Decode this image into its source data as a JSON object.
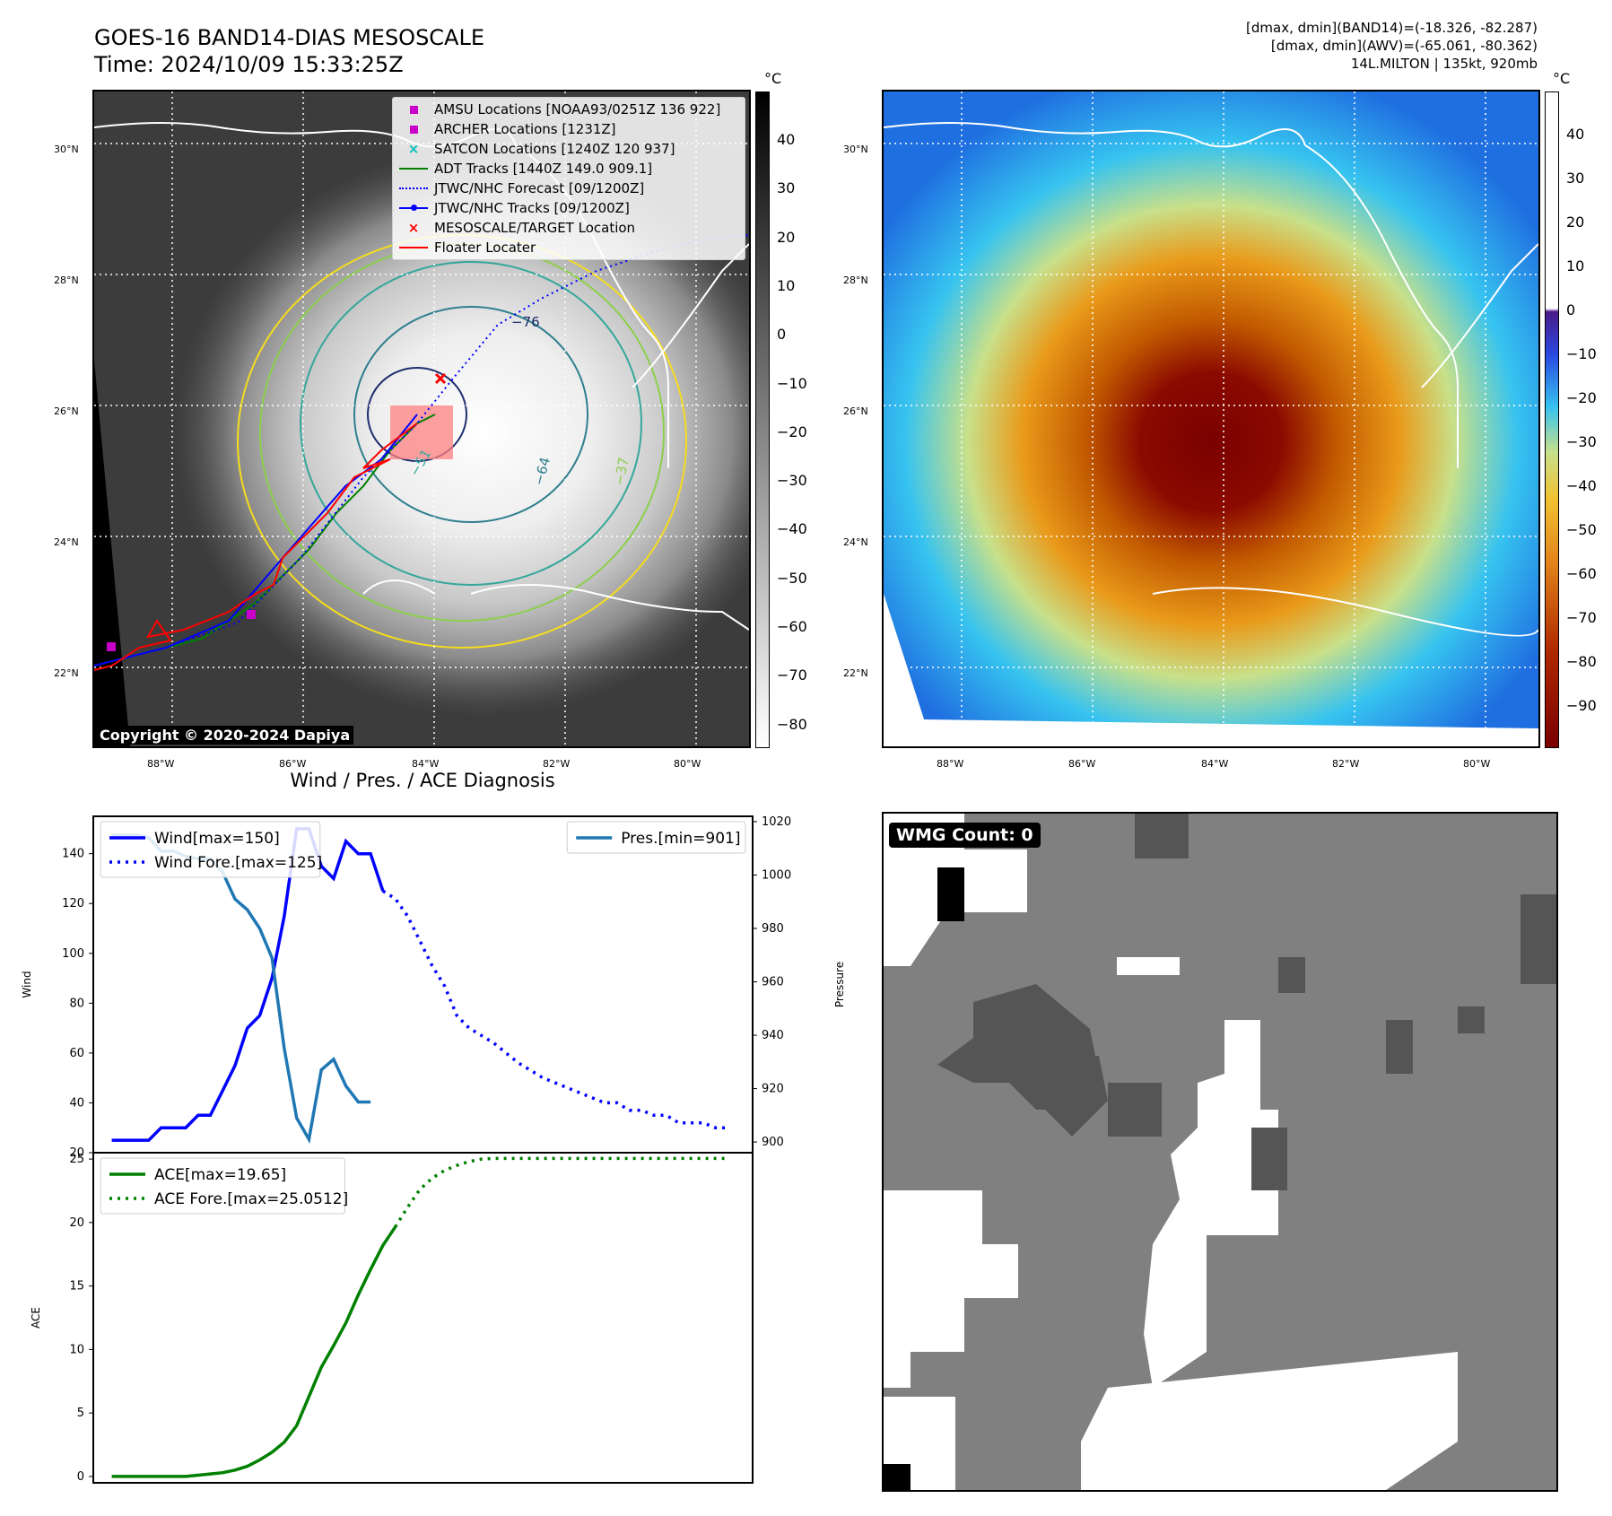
{
  "header": {
    "title": "GOES-16 BAND14-DIAS MESOSCALE",
    "time": "Time: 2024/10/09 15:33:25Z",
    "info_band14": "[dmax, dmin](BAND14)=(-18.326, -82.287)",
    "info_awv": "[dmax, dmin](AWV)=(-65.061, -80.362)",
    "info_storm": "14L.MILTON | 135kt, 920mb"
  },
  "map_axes": {
    "lat_labels": [
      "30°N",
      "28°N",
      "26°N",
      "24°N",
      "22°N"
    ],
    "lon_labels": [
      "88°W",
      "86°W",
      "84°W",
      "82°W",
      "80°W"
    ]
  },
  "ir_panel": {
    "copyright": "Copyright © 2020-2024 Dapiya",
    "colorbar_unit": "°C",
    "colorbar_ticks": [
      "40",
      "30",
      "20",
      "10",
      "0",
      "−10",
      "−20",
      "−30",
      "−40",
      "−50",
      "−60",
      "−70",
      "−80"
    ],
    "contour_labels": [
      "−76",
      "−64",
      "−51",
      "−37"
    ],
    "legend": [
      {
        "label": "AMSU Locations [NOAA93/0251Z 136 922]",
        "marker": "square",
        "color": "#c800c8"
      },
      {
        "label": "ARCHER Locations [1231Z]",
        "marker": "square",
        "color": "#c800c8"
      },
      {
        "label": "SATCON Locations [1240Z 120 937]",
        "marker": "x",
        "color": "#00c0c0"
      },
      {
        "label": "ADT Tracks [1440Z 149.0 909.1]",
        "marker": "line",
        "color": "#008000"
      },
      {
        "label": "JTWC/NHC Forecast [09/1200Z]",
        "marker": "dotted",
        "color": "#0000ff"
      },
      {
        "label": "JTWC/NHC Tracks [09/1200Z]",
        "marker": "line-dot",
        "color": "#0000ff"
      },
      {
        "label": "MESOSCALE/TARGET Location",
        "marker": "x",
        "color": "#ff0000"
      },
      {
        "label": "Floater Locater",
        "marker": "line",
        "color": "#ff0000"
      }
    ]
  },
  "awv_panel": {
    "colorbar_unit": "°C",
    "colorbar_ticks": [
      "40",
      "30",
      "20",
      "10",
      "0",
      "−10",
      "−20",
      "−30",
      "−40",
      "−50",
      "−60",
      "−70",
      "−80",
      "−90"
    ]
  },
  "wmg_panel": {
    "label": "WMG Count: 0"
  },
  "chart_data": [
    {
      "type": "line",
      "title": "Wind / Pres. / ACE Diagnosis",
      "ylabel": "Wind",
      "y2label": "Pressure",
      "ylim": [
        20,
        155
      ],
      "y2lim": [
        896,
        1022
      ],
      "yticks": [
        20,
        40,
        60,
        80,
        100,
        120,
        140
      ],
      "y2ticks": [
        900,
        920,
        940,
        960,
        980,
        1000,
        1020
      ],
      "legend_left": "upper left",
      "legend_right": "upper right",
      "series": [
        {
          "name": "Wind[max=150]",
          "axis": "left",
          "style": "solid",
          "color": "#0000ff",
          "x": [
            0,
            1,
            2,
            3,
            4,
            5,
            6,
            7,
            8,
            9,
            10,
            11,
            12,
            13,
            14,
            15,
            16,
            17,
            18,
            19,
            20,
            21,
            22,
            23,
            24
          ],
          "values": [
            25,
            25,
            25,
            25,
            30,
            30,
            30,
            35,
            35,
            45,
            55,
            70,
            75,
            90,
            115,
            150,
            150,
            135,
            130,
            145,
            140,
            140,
            125,
            null,
            null
          ]
        },
        {
          "name": "Wind Fore.[max=125]",
          "axis": "left",
          "style": "dotted",
          "color": "#0000ff",
          "x": [
            22,
            23,
            24,
            25,
            26,
            27,
            28,
            29,
            30,
            31,
            32,
            33,
            34,
            35,
            36,
            37,
            38,
            39,
            40,
            41,
            42,
            43,
            44,
            45,
            46,
            47,
            48,
            49,
            50
          ],
          "values": [
            125,
            122,
            115,
            105,
            95,
            87,
            75,
            70,
            67,
            64,
            60,
            56,
            53,
            50,
            48,
            46,
            44,
            42,
            40,
            40,
            37,
            37,
            35,
            35,
            32,
            32,
            32,
            30,
            30
          ]
        },
        {
          "name": "Pres.[min=901]",
          "axis": "right",
          "style": "solid",
          "color": "#1f77b4",
          "x": [
            0,
            1,
            2,
            3,
            4,
            5,
            6,
            7,
            8,
            9,
            10,
            11,
            12,
            13,
            14,
            15,
            16,
            17,
            18,
            19,
            20,
            21,
            22,
            23,
            24
          ],
          "values": [
            1015,
            1015,
            1015,
            1014,
            1009,
            1009,
            1007,
            1006,
            1006,
            1001,
            991,
            987,
            980,
            969,
            935,
            909,
            901,
            927,
            931,
            921,
            915,
            915,
            null,
            null,
            null
          ]
        }
      ]
    },
    {
      "type": "line",
      "ylabel": "ACE",
      "ylim": [
        -0.5,
        25.5
      ],
      "yticks": [
        0,
        5,
        10,
        15,
        20,
        25
      ],
      "legend": "upper left",
      "series": [
        {
          "name": "ACE[max=19.65]",
          "style": "solid",
          "color": "#008000",
          "x": [
            0,
            1,
            2,
            3,
            4,
            5,
            6,
            7,
            8,
            9,
            10,
            11,
            12,
            13,
            14,
            15,
            16,
            17,
            18,
            19,
            20,
            21,
            22,
            23,
            24
          ],
          "values": [
            0,
            0,
            0,
            0,
            0,
            0,
            0,
            0.1,
            0.2,
            0.3,
            0.5,
            0.8,
            1.3,
            1.9,
            2.7,
            4.0,
            6.3,
            8.6,
            10.3,
            12.1,
            14.3,
            16.3,
            18.2,
            19.65,
            null
          ]
        },
        {
          "name": "ACE Fore.[max=25.0512]",
          "style": "dotted",
          "color": "#008000",
          "x": [
            23,
            24,
            25,
            26,
            27,
            28,
            29,
            30,
            31,
            32,
            33,
            34,
            35,
            36,
            37,
            38,
            39,
            40,
            41,
            42,
            43,
            44,
            45,
            46,
            47,
            48,
            49,
            50
          ],
          "values": [
            19.65,
            21.2,
            22.6,
            23.5,
            24.1,
            24.5,
            24.8,
            25.0,
            25.05,
            25.05,
            25.05,
            25.05,
            25.05,
            25.05,
            25.05,
            25.05,
            25.05,
            25.05,
            25.05,
            25.05,
            25.05,
            25.05,
            25.05,
            25.05,
            25.05,
            25.05,
            25.05,
            25.05
          ]
        }
      ]
    }
  ]
}
